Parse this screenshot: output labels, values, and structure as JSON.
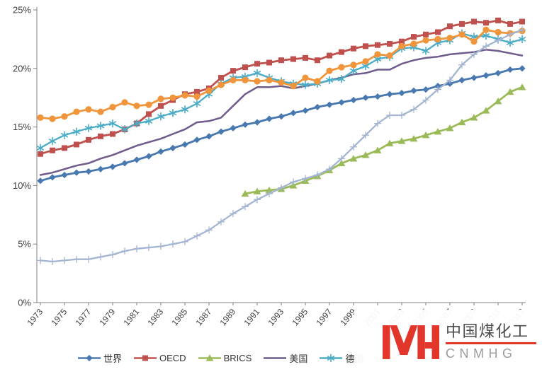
{
  "chart_data": {
    "type": "line",
    "title": "",
    "grid": false,
    "legend_position": "bottom",
    "ylim": [
      0,
      25
    ],
    "y_axis_tick_labels": [
      "0%",
      "5%",
      "10%",
      "15%",
      "20%",
      "25%"
    ],
    "x_axis_tick_labels": [
      "1973",
      "1975",
      "1977",
      "1979",
      "1981",
      "1983",
      "1985",
      "1987",
      "1989",
      "1991",
      "1993",
      "1995",
      "1997",
      "1999",
      "2001",
      "2003",
      "2005",
      "2007",
      "2009",
      "2011",
      "2013"
    ],
    "x": [
      1973,
      1974,
      1975,
      1976,
      1977,
      1978,
      1979,
      1980,
      1981,
      1982,
      1983,
      1984,
      1985,
      1986,
      1987,
      1988,
      1989,
      1990,
      1991,
      1992,
      1993,
      1994,
      1995,
      1996,
      1997,
      1998,
      1999,
      2000,
      2001,
      2002,
      2003,
      2004,
      2005,
      2006,
      2007,
      2008,
      2009,
      2010,
      2011,
      2012,
      2013
    ],
    "axis_color": "#808080",
    "text_color": "#3f3f3f",
    "series": [
      {
        "name": "世界",
        "marker": "diamond",
        "color": "#4878B0",
        "label_obscured_by_watermark": false,
        "values": [
          10.4,
          10.7,
          10.9,
          11.1,
          11.2,
          11.4,
          11.6,
          11.9,
          12.2,
          12.5,
          12.9,
          13.2,
          13.5,
          13.9,
          14.2,
          14.6,
          14.9,
          15.2,
          15.4,
          15.7,
          15.9,
          16.2,
          16.4,
          16.7,
          16.9,
          17.1,
          17.3,
          17.5,
          17.6,
          17.8,
          17.9,
          18.1,
          18.2,
          18.5,
          18.7,
          19.0,
          19.2,
          19.4,
          19.6,
          19.9,
          20.0
        ]
      },
      {
        "name": "OECD",
        "marker": "square",
        "color": "#C0504D",
        "label_obscured_by_watermark": false,
        "values": [
          12.7,
          13.0,
          13.2,
          13.5,
          13.9,
          14.2,
          14.4,
          14.8,
          15.3,
          16.1,
          16.8,
          17.3,
          17.8,
          18.0,
          18.3,
          19.2,
          19.8,
          20.1,
          20.4,
          20.5,
          20.7,
          20.8,
          20.9,
          20.7,
          21.1,
          21.4,
          21.7,
          21.9,
          22.0,
          22.1,
          22.3,
          22.7,
          22.9,
          23.1,
          23.6,
          23.8,
          24.0,
          23.9,
          24.1,
          23.8,
          24.0
        ]
      },
      {
        "name": "BRICS",
        "marker": "triangle",
        "color": "#9BBB59",
        "label_obscured_by_watermark": false,
        "values": [
          null,
          null,
          null,
          null,
          null,
          null,
          null,
          null,
          null,
          null,
          null,
          null,
          null,
          null,
          null,
          null,
          null,
          9.3,
          9.5,
          9.6,
          9.7,
          10.0,
          10.4,
          10.8,
          11.3,
          11.9,
          12.3,
          12.6,
          13.0,
          13.6,
          13.8,
          14.0,
          14.3,
          14.6,
          14.9,
          15.4,
          15.8,
          16.4,
          17.2,
          18.0,
          18.4
        ]
      },
      {
        "name": "美国",
        "marker": "none",
        "color": "#6F5B8C",
        "label_obscured_by_watermark": false,
        "values": [
          10.9,
          11.1,
          11.4,
          11.7,
          11.9,
          12.3,
          12.6,
          13.0,
          13.4,
          13.7,
          14.0,
          14.4,
          14.8,
          15.4,
          15.5,
          15.8,
          16.8,
          17.8,
          18.4,
          18.4,
          18.5,
          18.3,
          18.5,
          18.7,
          19.0,
          19.2,
          19.5,
          19.6,
          19.9,
          19.9,
          20.4,
          20.7,
          20.9,
          21.0,
          21.2,
          21.3,
          21.4,
          21.6,
          21.5,
          21.3,
          21.1
        ]
      },
      {
        "name": "德国",
        "marker": "asterisk",
        "color": "#4BACC6",
        "label_obscured_by_watermark": false,
        "values": [
          13.2,
          13.8,
          14.3,
          14.6,
          14.9,
          15.1,
          15.3,
          14.8,
          15.3,
          15.5,
          15.9,
          16.2,
          16.5,
          17.0,
          17.8,
          18.7,
          19.2,
          19.3,
          19.6,
          19.2,
          18.9,
          18.7,
          18.6,
          18.7,
          19.0,
          19.1,
          19.8,
          20.2,
          20.8,
          21.0,
          21.7,
          21.8,
          21.5,
          22.2,
          22.4,
          23.0,
          22.7,
          22.8,
          22.5,
          22.2,
          22.5
        ]
      },
      {
        "name": "",
        "marker": "circle",
        "color": "#F0953C",
        "label_obscured_by_watermark": true,
        "values": [
          15.8,
          15.7,
          15.9,
          16.3,
          16.5,
          16.3,
          16.7,
          17.1,
          16.8,
          16.9,
          17.4,
          17.5,
          17.7,
          17.6,
          18.1,
          18.6,
          19.0,
          19.0,
          18.9,
          19.0,
          18.8,
          18.5,
          19.2,
          18.9,
          19.8,
          20.1,
          20.3,
          20.6,
          21.2,
          21.1,
          21.9,
          22.1,
          22.4,
          22.5,
          22.6,
          22.9,
          22.3,
          23.3,
          23.1,
          23.0,
          23.2
        ]
      },
      {
        "name": "",
        "marker": "plus",
        "color": "#A4B5D2",
        "label_obscured_by_watermark": true,
        "values": [
          3.6,
          3.5,
          3.6,
          3.7,
          3.7,
          3.9,
          4.1,
          4.4,
          4.6,
          4.7,
          4.8,
          5.0,
          5.2,
          5.7,
          6.2,
          6.9,
          7.6,
          8.2,
          8.8,
          9.3,
          9.8,
          10.3,
          10.6,
          10.9,
          11.4,
          12.3,
          13.3,
          14.3,
          15.3,
          16.0,
          16.0,
          16.5,
          17.3,
          18.2,
          19.0,
          20.3,
          21.2,
          21.9,
          22.4,
          22.9,
          23.3
        ]
      }
    ]
  },
  "watermark": {
    "brand_cn": "中国煤化工",
    "brand_en": "CNMHG",
    "accent": "#E2362B"
  }
}
